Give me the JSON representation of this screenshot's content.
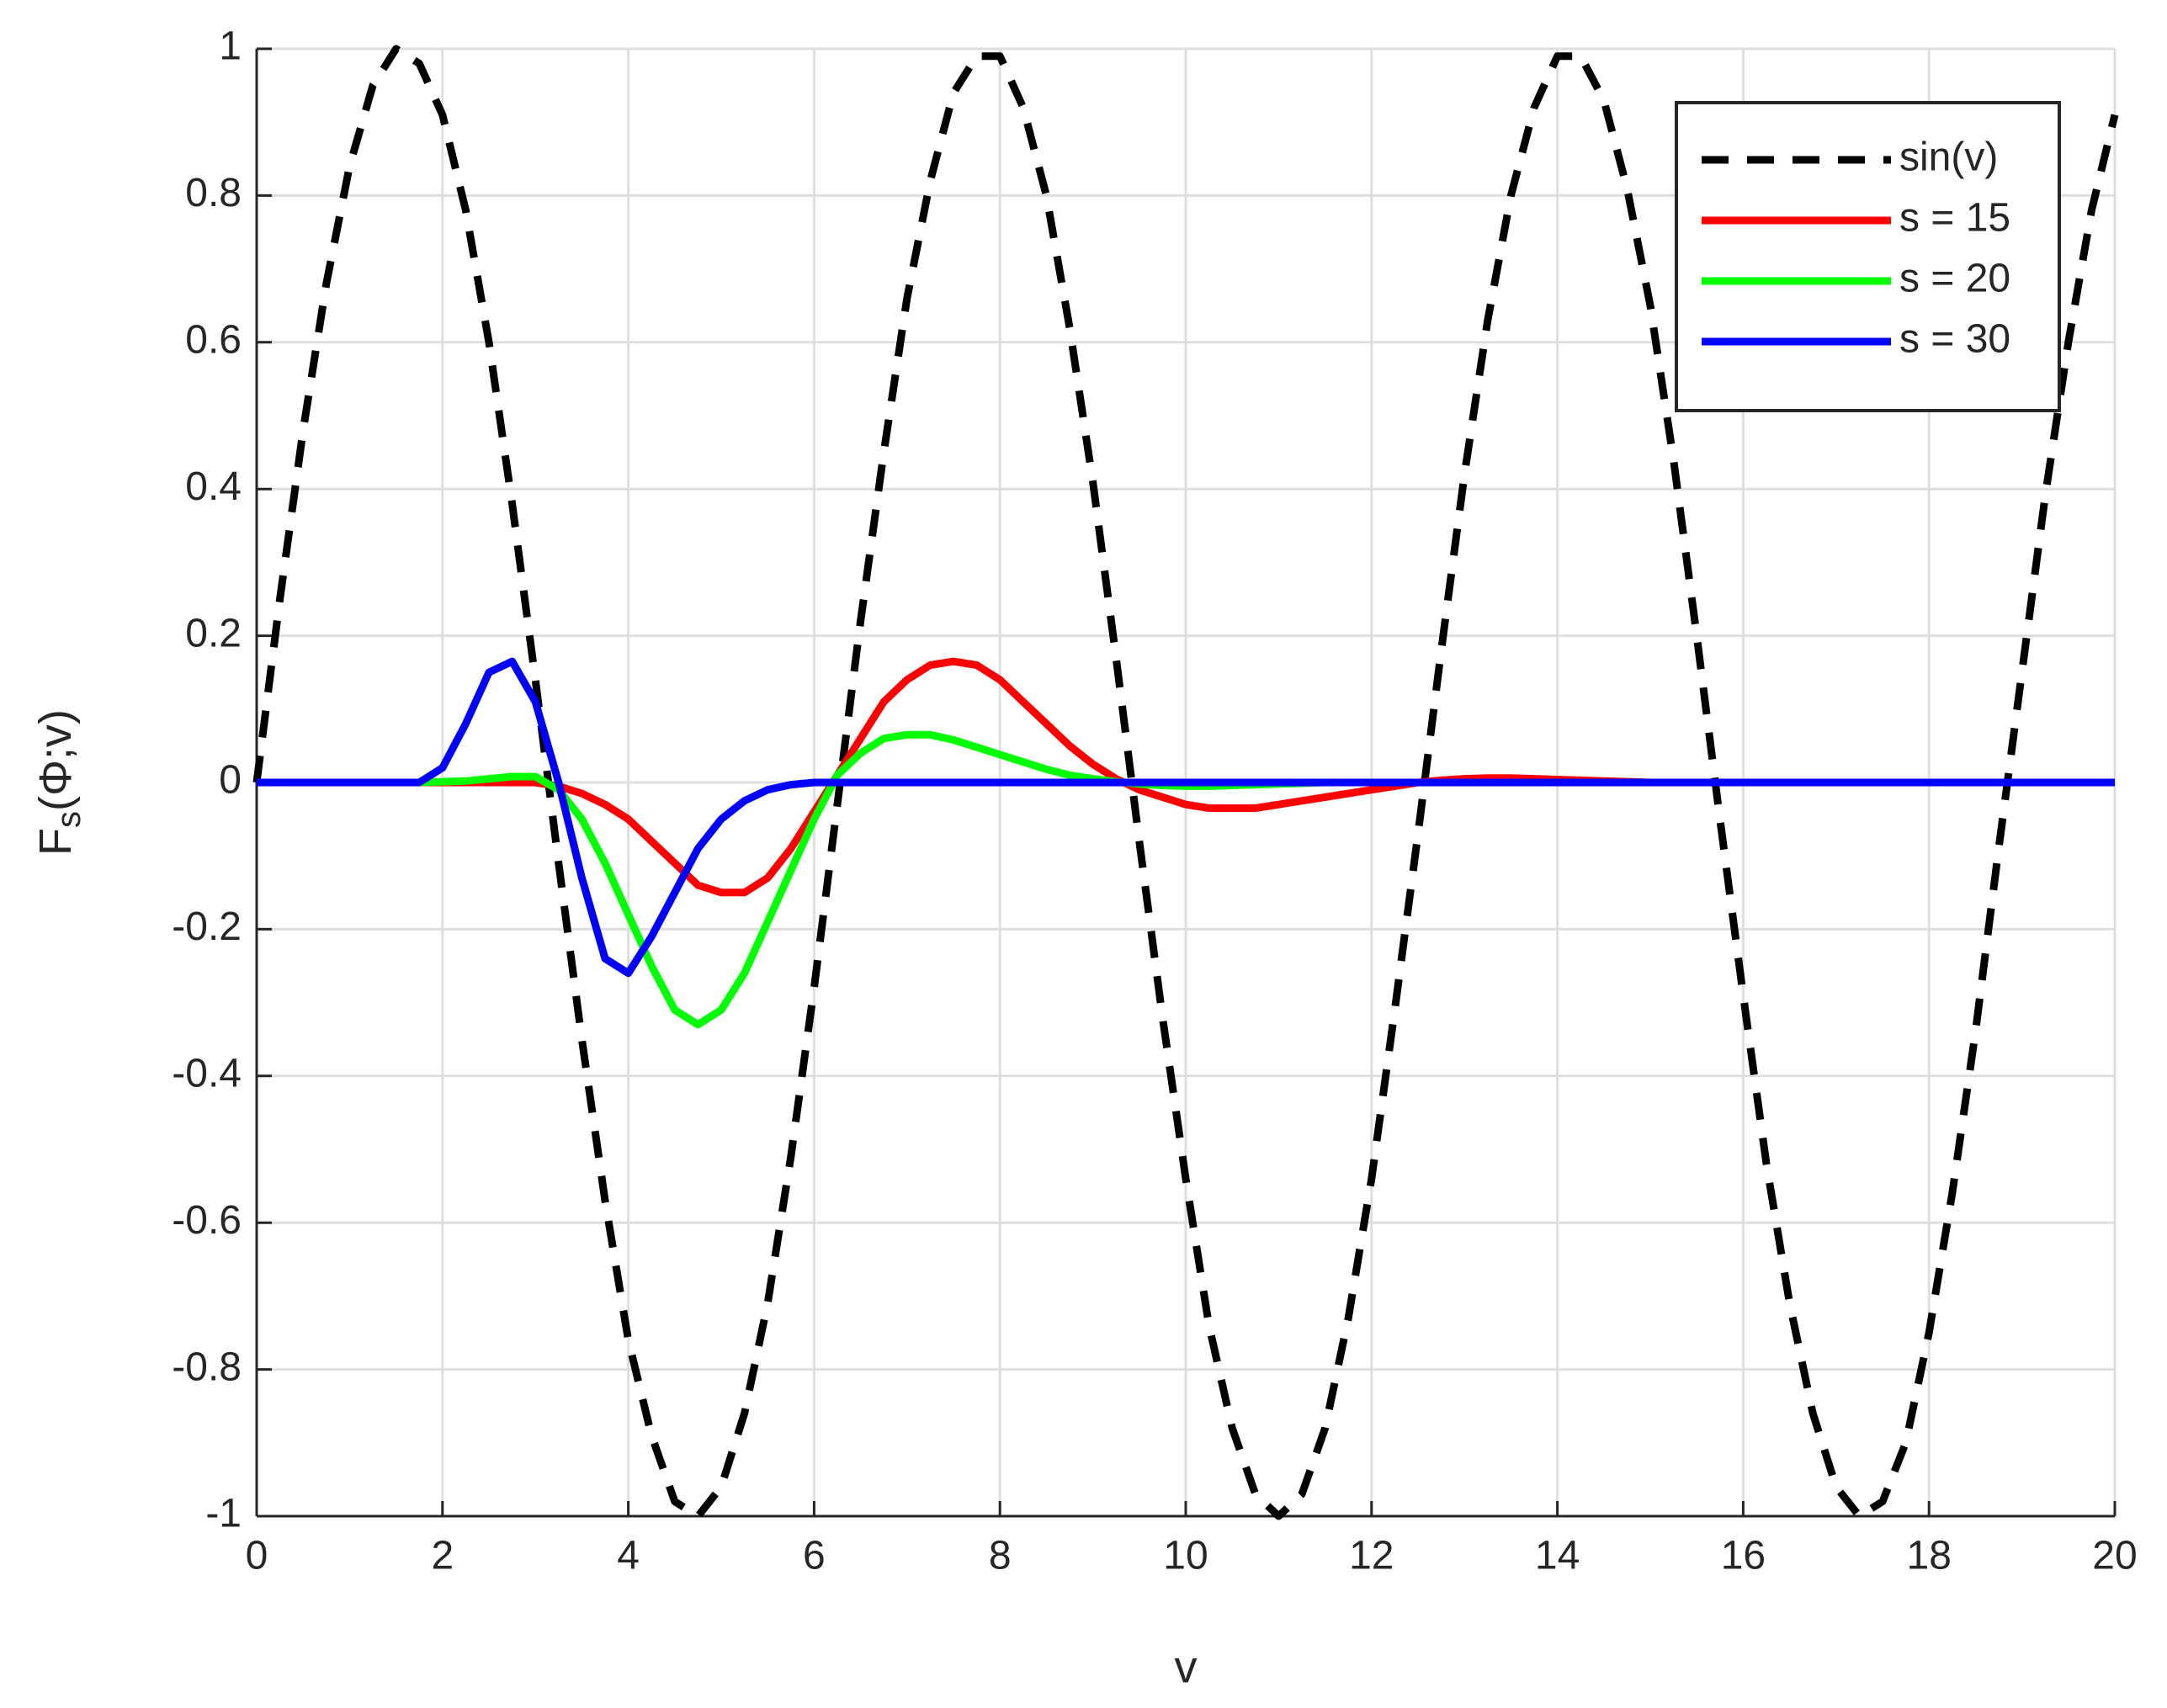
{
  "chart_data": {
    "type": "line",
    "xlabel": "v",
    "ylabel": {
      "main": "F",
      "sub": "s",
      "rest": "(Φ;v)"
    },
    "x": [
      0,
      0.25,
      0.5,
      0.75,
      1,
      1.25,
      1.5,
      1.75,
      2,
      2.25,
      2.5,
      2.75,
      3,
      3.25,
      3.5,
      3.75,
      4,
      4.25,
      4.5,
      4.75,
      5,
      5.25,
      5.5,
      5.75,
      6,
      6.25,
      6.5,
      6.75,
      7,
      7.25,
      7.5,
      7.75,
      8,
      8.25,
      8.5,
      8.75,
      9,
      9.25,
      9.5,
      9.75,
      10,
      10.25,
      10.5,
      10.75,
      11,
      11.25,
      11.5,
      11.75,
      12,
      12.25,
      12.5,
      12.75,
      13,
      13.25,
      13.5,
      13.75,
      14,
      14.25,
      14.5,
      14.75,
      15,
      15.25,
      15.5,
      15.75,
      16,
      16.25,
      16.5,
      16.75,
      17,
      17.25,
      17.5,
      17.75,
      18,
      18.25,
      18.5,
      18.75,
      19,
      19.25,
      19.5,
      19.75,
      20
    ],
    "series": [
      {
        "name": "sin(v)",
        "color": "#000000",
        "dashed": true,
        "values": [
          0,
          0.25,
          0.48,
          0.68,
          0.84,
          0.95,
          1.0,
          0.98,
          0.91,
          0.78,
          0.6,
          0.38,
          0.14,
          -0.11,
          -0.35,
          -0.57,
          -0.76,
          -0.89,
          -0.98,
          -1.0,
          -0.96,
          -0.86,
          -0.71,
          -0.51,
          -0.28,
          -0.03,
          0.22,
          0.45,
          0.66,
          0.82,
          0.94,
          0.99,
          0.99,
          0.92,
          0.8,
          0.62,
          0.41,
          0.17,
          -0.08,
          -0.32,
          -0.54,
          -0.74,
          -0.88,
          -0.97,
          -1.0,
          -0.97,
          -0.88,
          -0.73,
          -0.54,
          -0.31,
          -0.07,
          0.18,
          0.42,
          0.63,
          0.8,
          0.92,
          0.99,
          0.99,
          0.93,
          0.81,
          0.65,
          0.44,
          0.2,
          -0.05,
          -0.29,
          -0.52,
          -0.71,
          -0.86,
          -0.96,
          -1.0,
          -0.98,
          -0.9,
          -0.75,
          -0.56,
          -0.34,
          -0.09,
          0.15,
          0.39,
          0.6,
          0.78,
          0.91
        ]
      },
      {
        "name": "s = 15",
        "color": "#ff0000",
        "values": [
          0,
          0,
          0,
          0,
          0,
          0,
          0,
          0,
          0,
          0,
          0,
          0,
          0,
          -0.005,
          -0.015,
          -0.03,
          -0.05,
          -0.08,
          -0.11,
          -0.14,
          -0.15,
          -0.15,
          -0.13,
          -0.09,
          -0.04,
          0.01,
          0.06,
          0.11,
          0.14,
          0.16,
          0.165,
          0.16,
          0.14,
          0.11,
          0.08,
          0.05,
          0.025,
          0.005,
          -0.01,
          -0.02,
          -0.03,
          -0.035,
          -0.035,
          -0.035,
          -0.03,
          -0.025,
          -0.02,
          -0.015,
          -0.01,
          -0.005,
          0,
          0.003,
          0.005,
          0.006,
          0.006,
          0.005,
          0.004,
          0.003,
          0.002,
          0.001,
          0,
          0,
          0,
          0,
          0,
          0,
          0,
          0,
          0,
          0,
          0,
          0,
          0,
          0,
          0,
          0,
          0,
          0,
          0,
          0,
          0
        ]
      },
      {
        "name": "s = 20",
        "color": "#00ff00",
        "values": [
          0,
          0,
          0,
          0,
          0,
          0,
          0,
          0,
          0.001,
          0.002,
          0.005,
          0.008,
          0.008,
          -0.01,
          -0.05,
          -0.11,
          -0.18,
          -0.25,
          -0.31,
          -0.33,
          -0.31,
          -0.26,
          -0.19,
          -0.12,
          -0.05,
          0.01,
          0.04,
          0.06,
          0.065,
          0.065,
          0.058,
          0.048,
          0.038,
          0.028,
          0.018,
          0.01,
          0.005,
          0.001,
          -0.002,
          -0.004,
          -0.005,
          -0.005,
          -0.004,
          -0.003,
          -0.002,
          -0.001,
          0,
          0,
          0,
          0,
          0,
          0,
          0,
          0,
          0,
          0,
          0,
          0,
          0,
          0,
          0,
          0,
          0,
          0,
          0,
          0,
          0,
          0,
          0,
          0,
          0,
          0,
          0,
          0,
          0,
          0,
          0,
          0,
          0,
          0,
          0
        ]
      },
      {
        "name": "s = 30",
        "color": "#0000ff",
        "values": [
          0,
          0,
          0,
          0,
          0,
          0,
          0,
          0,
          0.02,
          0.08,
          0.15,
          0.165,
          0.11,
          0,
          -0.13,
          -0.24,
          -0.26,
          -0.21,
          -0.15,
          -0.09,
          -0.05,
          -0.025,
          -0.01,
          -0.003,
          0,
          0,
          0,
          0,
          0,
          0,
          0,
          0,
          0,
          0,
          0,
          0,
          0,
          0,
          0,
          0,
          0,
          0,
          0,
          0,
          0,
          0,
          0,
          0,
          0,
          0,
          0,
          0,
          0,
          0,
          0,
          0,
          0,
          0,
          0,
          0,
          0,
          0,
          0,
          0,
          0,
          0,
          0,
          0,
          0,
          0,
          0,
          0,
          0,
          0,
          0,
          0,
          0,
          0,
          0,
          0,
          0
        ]
      }
    ],
    "xlim": [
      0,
      20
    ],
    "xticks": [
      0,
      2,
      4,
      6,
      8,
      10,
      12,
      14,
      16,
      18,
      20
    ],
    "ylim": [
      -1,
      1
    ],
    "yticks": [
      -1,
      -0.8,
      -0.6,
      -0.4,
      -0.2,
      0,
      0.2,
      0.4,
      0.6,
      0.8,
      1
    ],
    "grid": true,
    "legend": "upper right"
  }
}
